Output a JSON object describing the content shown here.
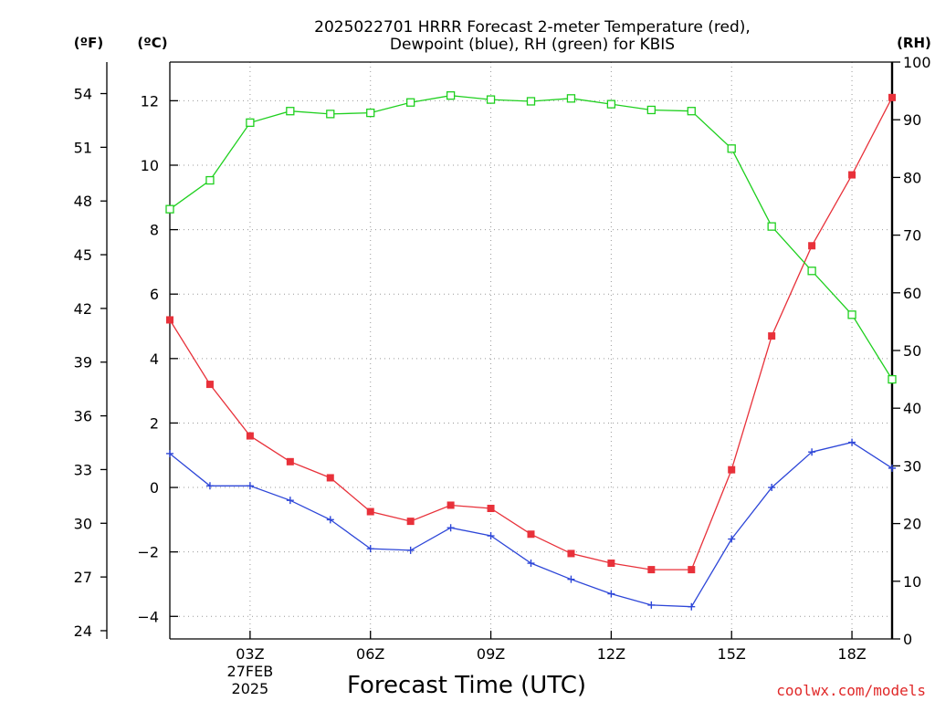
{
  "chart_data": {
    "type": "line",
    "title_line1": "2025022701 HRRR Forecast 2-meter Temperature (red),",
    "title_line2": "Dewpoint (blue), RH (green) for KBIS",
    "xlabel": "Forecast Time (UTC)",
    "credit": "coolwx.com/models",
    "left_outer_unit": "(ºF)",
    "left_inner_unit": "(ºC)",
    "right_unit": "(RH)",
    "x_hours": [
      1,
      2,
      3,
      4,
      5,
      6,
      7,
      8,
      9,
      10,
      11,
      12,
      13,
      14,
      15,
      16,
      17,
      18,
      19
    ],
    "x_range": [
      1,
      19
    ],
    "x_ticks": [
      {
        "hour": 3,
        "label": "03Z",
        "sub1": "27FEB",
        "sub2": "2025"
      },
      {
        "hour": 6,
        "label": "06Z"
      },
      {
        "hour": 9,
        "label": "09Z"
      },
      {
        "hour": 12,
        "label": "12Z"
      },
      {
        "hour": 15,
        "label": "15Z"
      },
      {
        "hour": 18,
        "label": "18Z"
      }
    ],
    "y_celsius_range": [
      -4.7,
      13.2
    ],
    "y_celsius_ticks": [
      -4,
      -2,
      0,
      2,
      4,
      6,
      8,
      10,
      12
    ],
    "y_fahrenheit_ticks": [
      24,
      27,
      30,
      33,
      36,
      39,
      42,
      45,
      48,
      51,
      54
    ],
    "y_rh_range": [
      0,
      100
    ],
    "y_rh_ticks": [
      0,
      10,
      20,
      30,
      40,
      50,
      60,
      70,
      80,
      90,
      100
    ],
    "grid": true,
    "series": [
      {
        "name": "Temperature",
        "axis": "celsius",
        "color": "#e8313a",
        "marker": "filled-square",
        "values": [
          5.2,
          3.2,
          1.6,
          0.8,
          0.3,
          -0.75,
          -1.05,
          -0.55,
          -0.65,
          -1.45,
          -2.05,
          -2.35,
          -2.55,
          -2.55,
          0.55,
          4.7,
          7.5,
          9.7,
          12.1
        ]
      },
      {
        "name": "Dewpoint",
        "axis": "celsius",
        "color": "#2d46d8",
        "marker": "plus",
        "values": [
          1.05,
          0.05,
          0.05,
          -0.4,
          -1.0,
          -1.9,
          -1.95,
          -1.25,
          -1.5,
          -2.35,
          -2.85,
          -3.3,
          -3.65,
          -3.7,
          -1.6,
          0.0,
          1.1,
          1.4,
          0.6
        ]
      },
      {
        "name": "RH",
        "axis": "rh",
        "color": "#1fd01f",
        "marker": "open-square",
        "values": [
          74.5,
          79.5,
          89.5,
          91.5,
          91.0,
          91.2,
          93.0,
          94.2,
          93.5,
          93.2,
          93.7,
          92.7,
          91.7,
          91.5,
          85.0,
          71.5,
          63.8,
          56.2,
          45.0
        ]
      }
    ]
  }
}
